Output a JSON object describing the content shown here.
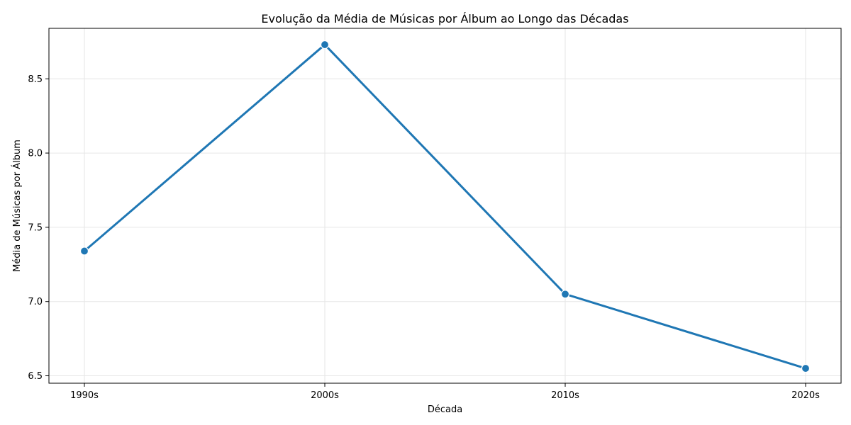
{
  "chart_data": {
    "type": "line",
    "title": "Evolução da Média de Músicas por Álbum ao Longo das Décadas",
    "xlabel": "Década",
    "ylabel": "Média de Músicas por Álbum",
    "categories": [
      "1990s",
      "2000s",
      "2010s",
      "2020s"
    ],
    "series": [
      {
        "values": [
          7.34,
          8.73,
          7.05,
          6.55
        ]
      }
    ],
    "ylim": [
      6.45,
      8.84
    ],
    "yticks": [
      6.5,
      7.0,
      7.5,
      8.0,
      8.5
    ],
    "ytick_labels": [
      "6.5",
      "7.0",
      "7.5",
      "8.0",
      "8.5"
    ],
    "grid": true,
    "line_color": "#1f77b4",
    "grid_color": "#e6e6e6"
  }
}
